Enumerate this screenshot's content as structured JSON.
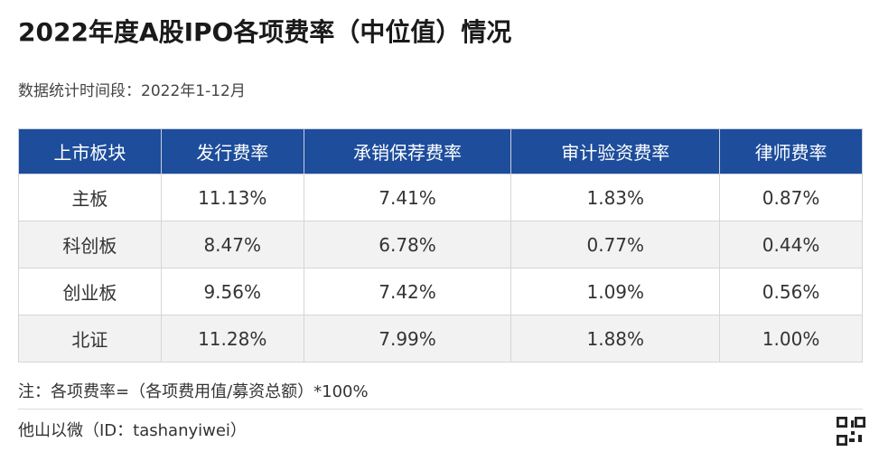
{
  "header": {
    "title": "2022年度A股IPO各项费率（中位值）情况",
    "subtitle": "数据统计时间段：2022年1-12月"
  },
  "table": {
    "columns": [
      "上市板块",
      "发行费率",
      "承销保荐费率",
      "审计验资费率",
      "律师费率"
    ],
    "rows": [
      [
        "主板",
        "11.13%",
        "7.41%",
        "1.83%",
        "0.87%"
      ],
      [
        "科创板",
        "8.47%",
        "6.78%",
        "0.77%",
        "0.44%"
      ],
      [
        "创业板",
        "9.56%",
        "7.42%",
        "1.09%",
        "0.56%"
      ],
      [
        "北证",
        "11.28%",
        "7.99%",
        "1.88%",
        "1.00%"
      ]
    ]
  },
  "footer": {
    "note": "注：各项费率=（各项费用值/募资总额）*100%",
    "source": "他山以微（ID：tashanyiwei）"
  }
}
